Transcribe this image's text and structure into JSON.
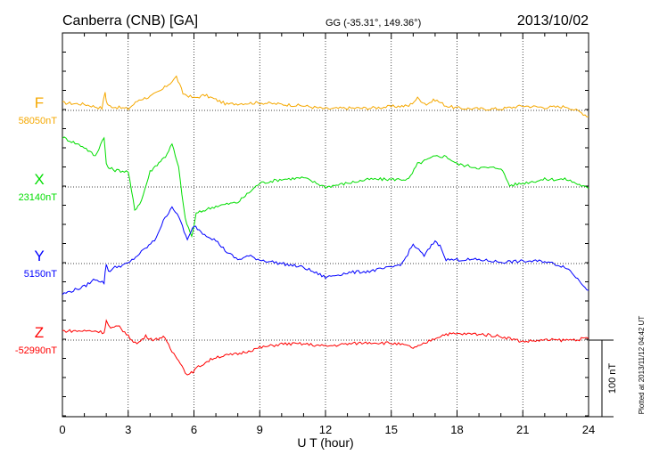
{
  "chart_data": {
    "type": "line",
    "title": "Canberra (CNB)  [GA]",
    "subtitle": "GG (-35.31°, 149.36°)",
    "date": "2013/10/02",
    "xlabel": "U T (hour)",
    "xlim": [
      0,
      24
    ],
    "xticks": [
      "0",
      "3",
      "6",
      "9",
      "12",
      "15",
      "18",
      "21",
      "24"
    ],
    "grid": true,
    "scale_label": "100 nT",
    "scale_nT_per_gridline": 100,
    "plotted_note": "Plotted at 2013/11/12 04:42 UT",
    "series": [
      {
        "name": "F",
        "baseline_label": "58050nT",
        "baseline_nT": 58050,
        "color": "#f5a800",
        "x": [
          0,
          1,
          1.8,
          1.95,
          2.0,
          2.1,
          2.5,
          3.0,
          3.5,
          4.0,
          4.5,
          5.0,
          5.2,
          5.5,
          6.0,
          6.5,
          7.0,
          7.5,
          8.0,
          9.0,
          10,
          11,
          12,
          13,
          14,
          15,
          15.8,
          16.2,
          16.6,
          17,
          17.5,
          18,
          19,
          20,
          21,
          22,
          23,
          23.6,
          24
        ],
        "values": [
          10,
          8,
          3,
          24,
          12,
          6,
          4,
          2,
          14,
          18,
          26,
          38,
          44,
          22,
          16,
          20,
          14,
          8,
          9,
          10,
          8,
          6,
          2,
          3,
          3,
          5,
          6,
          16,
          8,
          14,
          6,
          3,
          2,
          2,
          6,
          4,
          5,
          -2,
          -8
        ]
      },
      {
        "name": "X",
        "baseline_label": "23140nT",
        "baseline_nT": 23140,
        "color": "#00dd00",
        "x": [
          0,
          1,
          1.5,
          1.9,
          2.0,
          2.1,
          2.4,
          3.0,
          3.3,
          3.6,
          4.0,
          4.4,
          4.7,
          5.0,
          5.3,
          5.6,
          5.9,
          6.1,
          6.5,
          7.0,
          8.0,
          9.0,
          10.0,
          11.0,
          12.0,
          13.0,
          14.0,
          15.0,
          15.8,
          16.2,
          17.0,
          17.5,
          18.0,
          19.0,
          20.0,
          20.4,
          21.0,
          22.0,
          23.0,
          24.0
        ],
        "values": [
          65,
          52,
          40,
          66,
          30,
          25,
          22,
          20,
          -30,
          -18,
          20,
          32,
          40,
          56,
          25,
          -42,
          -65,
          -35,
          -30,
          -25,
          -20,
          5,
          10,
          12,
          0,
          5,
          10,
          10,
          10,
          30,
          40,
          40,
          30,
          25,
          25,
          2,
          5,
          10,
          10,
          -2
        ]
      },
      {
        "name": "Y",
        "baseline_label": "5150nT",
        "baseline_nT": 5150,
        "color": "#0000ff",
        "x": [
          0,
          1,
          1.5,
          1.9,
          2.0,
          2.1,
          2.4,
          3.0,
          3.6,
          4.2,
          4.6,
          5.0,
          5.4,
          5.7,
          6.0,
          6.4,
          7.0,
          7.5,
          8.0,
          8.5,
          9.0,
          10.0,
          11.0,
          12.0,
          13.0,
          14.0,
          15.0,
          15.5,
          16.0,
          16.5,
          17.0,
          17.3,
          17.5,
          18.0,
          19.0,
          20.0,
          21.0,
          22.0,
          23.0,
          24.0
        ],
        "values": [
          -40,
          -30,
          -20,
          -25,
          0,
          -10,
          -5,
          0,
          15,
          30,
          55,
          75,
          55,
          30,
          50,
          40,
          30,
          15,
          5,
          10,
          5,
          0,
          -5,
          -18,
          -12,
          -10,
          -5,
          0,
          25,
          10,
          30,
          20,
          5,
          5,
          5,
          2,
          3,
          3,
          -5,
          -35
        ]
      },
      {
        "name": "Z",
        "baseline_label": "-52990nT",
        "baseline_nT": -52990,
        "color": "#ff0000",
        "x": [
          0,
          1,
          1.5,
          1.9,
          2.0,
          2.2,
          2.6,
          3.0,
          3.4,
          3.8,
          4.2,
          4.6,
          5.0,
          5.3,
          5.6,
          5.8,
          6.2,
          6.6,
          7.0,
          8.0,
          9.0,
          10.0,
          11.0,
          12.0,
          13.0,
          14.0,
          15.0,
          15.5,
          16.0,
          16.3,
          16.8,
          17.2,
          17.5,
          18.0,
          19.0,
          20.0,
          21.0,
          22.0,
          23.0,
          24.0
        ],
        "values": [
          12,
          12,
          12,
          10,
          25,
          15,
          18,
          5,
          -5,
          5,
          0,
          5,
          -15,
          -25,
          -42,
          -45,
          -35,
          -28,
          -22,
          -18,
          -10,
          -5,
          -5,
          -8,
          -5,
          -3,
          -4,
          -6,
          -10,
          -8,
          0,
          5,
          8,
          8,
          8,
          5,
          -2,
          0,
          0,
          2
        ]
      }
    ]
  }
}
